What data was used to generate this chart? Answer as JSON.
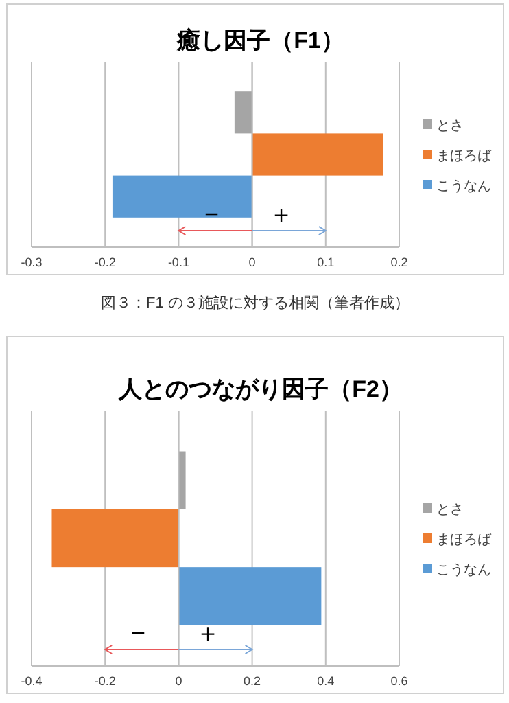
{
  "chart_data": [
    {
      "type": "bar",
      "orientation": "horizontal",
      "title": "癒し因子（F1）",
      "categories": [
        null
      ],
      "series": [
        {
          "name": "とさ",
          "color": "#a5a5a5",
          "values": [
            -0.024
          ]
        },
        {
          "name": "まほろば",
          "color": "#ed7d31",
          "values": [
            0.178
          ]
        },
        {
          "name": "こうなん",
          "color": "#5b9bd5",
          "values": [
            -0.19
          ]
        }
      ],
      "xlim": [
        -0.3,
        0.2
      ],
      "xticks": [
        -0.3,
        -0.2,
        -0.1,
        0,
        0.1,
        0.2
      ],
      "grid": "x",
      "legend": "right",
      "annotations": [
        "−",
        "＋",
        "図３：F1 の３施設に対する相関（筆者作成）"
      ]
    },
    {
      "type": "bar",
      "orientation": "horizontal",
      "title": "人とのつながり因子（F2）",
      "categories": [
        null
      ],
      "series": [
        {
          "name": "とさ",
          "color": "#a5a5a5",
          "values": [
            0.019
          ]
        },
        {
          "name": "まほろば",
          "color": "#ed7d31",
          "values": [
            -0.345
          ]
        },
        {
          "name": "こうなん",
          "color": "#5b9bd5",
          "values": [
            0.388
          ]
        }
      ],
      "xlim": [
        -0.4,
        0.6
      ],
      "xticks": [
        -0.4,
        -0.2,
        0,
        0.2,
        0.4,
        0.6
      ],
      "grid": "x",
      "legend": "right",
      "annotations": [
        "−",
        "＋"
      ]
    }
  ]
}
